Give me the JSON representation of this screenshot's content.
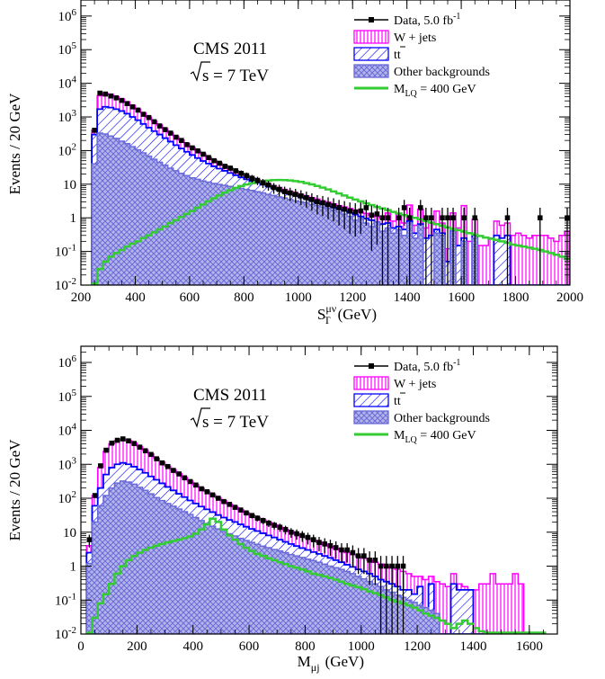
{
  "colors": {
    "data": "#000000",
    "wjets": "#ff00ff",
    "ttbar": "#0000ff",
    "other": "#6b6bd8",
    "signal": "#33cc33"
  },
  "chart_data": [
    {
      "type": "histogram-stack",
      "y_scale": "log",
      "ylim": [
        0.01,
        3000000
      ],
      "xlim": [
        200,
        2000
      ],
      "bin_width": 20,
      "x_ticks": [
        200,
        400,
        600,
        800,
        1000,
        1200,
        1400,
        1600,
        1800,
        2000
      ],
      "x_tick_labels": [
        "200",
        "400",
        "600",
        "800",
        "1000",
        "1200",
        "1400",
        "1600",
        "1800",
        "2000"
      ],
      "y_tick_labels": [
        "10-2",
        "10-1",
        "1",
        "10",
        "102",
        "103",
        "104",
        "105",
        "106"
      ],
      "xlabel_main": "S",
      "xlabel_sub": "T",
      "xlabel_sup": "μν",
      "xlabel_unit": "(GeV)",
      "ylabel": "Events / 20 GeV",
      "annotation_line1": "CMS 2011",
      "annotation_line2": "s = 7 TeV",
      "legend": {
        "data": "Data, 5.0 fb",
        "data_sup": "-1",
        "wjets": "W + jets",
        "ttbar": "tt",
        "other": "Other backgrounds",
        "signal_main": "M",
        "signal_sub": "LQ",
        "signal_rest": " = 400 GeV"
      },
      "bin_start": 240,
      "other": [
        40,
        330,
        310,
        270,
        230,
        190,
        160,
        130,
        105,
        85,
        68,
        55,
        45,
        37,
        30,
        25,
        21,
        18,
        15.5,
        14,
        12.5,
        11.5,
        10.5,
        9.8,
        9.2,
        8.6,
        8,
        7.5,
        7,
        6.5,
        6,
        5.5,
        5,
        4.6,
        4.2,
        3.9,
        3.5,
        3.2,
        3,
        2.8,
        2.5,
        2.3,
        2.1,
        1.9,
        1.7,
        1.5,
        1.3,
        1.1,
        0.85,
        0.95,
        0.7,
        0.55,
        0.75,
        0.4,
        0.5,
        0.35,
        0.45,
        0.3,
        0.7,
        0.25,
        0.6,
        0.01,
        0.01,
        0.35,
        0.3,
        0.01,
        0.4,
        0.01,
        0.2,
        0.01,
        0.25,
        0.01,
        0.01,
        0.01,
        0.01,
        0.01,
        0.01,
        0.01,
        0.01,
        0.01,
        0.01,
        0.01,
        0.01,
        0.01,
        0.01,
        0.01,
        0.01,
        0.01
      ],
      "ttbar": [
        300,
        1700,
        2000,
        1900,
        1700,
        1500,
        1250,
        1000,
        800,
        620,
        480,
        380,
        300,
        235,
        185,
        145,
        115,
        92,
        74,
        60,
        49,
        41,
        34,
        29,
        25,
        21.5,
        18.5,
        16,
        14,
        12.5,
        11,
        9.7,
        8.5,
        7.5,
        6.6,
        5.8,
        5.1,
        4.5,
        4,
        3.6,
        3.2,
        2.8,
        2.5,
        2.2,
        2,
        1.8,
        1.6,
        1.4,
        1.25,
        1.1,
        0.95,
        0.85,
        0.75,
        0.65,
        0.7,
        0.5,
        0.55,
        0.45,
        0.8,
        0.35,
        0.65,
        0.25,
        0.3,
        0.45,
        0.35,
        0.05,
        0.4,
        0.15,
        0.25,
        0.01,
        0.3,
        0.01,
        0.01,
        0.01,
        0.3,
        0.25,
        0.3,
        0.01,
        0.01,
        0.01,
        0.01,
        0.01,
        0.01,
        0.01,
        0.01,
        0.01,
        0.01,
        0.01
      ],
      "total": [
        400,
        4300,
        5000,
        4600,
        4000,
        3400,
        2800,
        2200,
        1700,
        1300,
        980,
        740,
        570,
        440,
        340,
        265,
        205,
        160,
        125,
        100,
        80,
        64,
        52,
        43,
        36,
        30,
        25,
        21,
        18,
        15.5,
        13.5,
        11.7,
        10.2,
        9,
        8,
        7,
        6.2,
        5.5,
        4.9,
        4.4,
        4,
        3.6,
        3.2,
        2.9,
        2.6,
        2.3,
        2.1,
        1.9,
        1.7,
        1.5,
        1.35,
        1.2,
        1.1,
        1.0,
        1.4,
        0.8,
        1.3,
        0.7,
        2.4,
        0.6,
        1.8,
        0.5,
        0.7,
        1.6,
        0.7,
        0.12,
        1.4,
        0.5,
        2.3,
        0.2,
        0.9,
        0.15,
        0.15,
        0.25,
        0.8,
        0.6,
        0.7,
        0.3,
        0.35,
        0.3,
        0.25,
        0.3,
        0.3,
        0.3,
        0.25,
        0.2,
        0.3,
        0.4
      ],
      "signal": [
        0.011,
        0.03,
        0.05,
        0.07,
        0.09,
        0.11,
        0.14,
        0.17,
        0.2,
        0.25,
        0.3,
        0.37,
        0.45,
        0.55,
        0.7,
        0.85,
        1.05,
        1.3,
        1.6,
        2,
        2.5,
        3.1,
        3.8,
        4.6,
        5.6,
        6.6,
        7.7,
        8.8,
        9.8,
        10.8,
        11.7,
        12.3,
        12.8,
        13.2,
        13.3,
        13.2,
        12.9,
        12.4,
        11.7,
        10.8,
        9.9,
        8.9,
        7.9,
        7,
        6.1,
        5.3,
        4.6,
        4,
        3.5,
        3.1,
        2.7,
        2.4,
        2.1,
        1.9,
        1.7,
        1.5,
        1.35,
        1.2,
        1.1,
        1.0,
        0.9,
        0.8,
        0.72,
        0.65,
        0.58,
        0.52,
        0.47,
        0.43,
        0.39,
        0.35,
        0.32,
        0.29,
        0.26,
        0.24,
        0.22,
        0.2,
        0.18,
        0.16,
        0.15,
        0.14,
        0.13,
        0.12,
        0.11,
        0.1,
        0.09,
        0.08,
        0.07,
        0.06
      ],
      "data_x": [
        250,
        270,
        290,
        310,
        330,
        350,
        370,
        390,
        410,
        430,
        450,
        470,
        490,
        510,
        530,
        550,
        570,
        590,
        610,
        630,
        650,
        670,
        690,
        710,
        730,
        750,
        770,
        790,
        810,
        830,
        850,
        870,
        890,
        910,
        930,
        950,
        970,
        990,
        1010,
        1030,
        1050,
        1070,
        1090,
        1110,
        1130,
        1150,
        1170,
        1190,
        1210,
        1230,
        1250,
        1270,
        1290,
        1310,
        1330,
        1370,
        1390,
        1410,
        1450,
        1470,
        1490,
        1530,
        1550,
        1570,
        1610,
        1650,
        1770,
        1890,
        1990
      ],
      "data_y": [
        400,
        5100,
        4800,
        4200,
        3700,
        3100,
        2500,
        2000,
        1600,
        1200,
        960,
        720,
        540,
        420,
        330,
        250,
        200,
        150,
        120,
        98,
        78,
        62,
        50,
        42,
        34,
        30,
        25,
        21,
        18,
        15,
        13,
        11,
        9.5,
        8,
        7,
        6,
        5.5,
        5,
        4.5,
        4,
        3.5,
        3,
        2.8,
        2.5,
        2.3,
        2,
        1.8,
        1.6,
        1.5,
        1.6,
        2.0,
        1.2,
        1.3,
        1.0,
        1.0,
        1.0,
        2.0,
        1.0,
        2.0,
        1.0,
        1.0,
        1.0,
        1.0,
        1.0,
        1.0,
        1.0,
        1.0,
        1.0,
        1.0
      ]
    },
    {
      "type": "histogram-stack",
      "y_scale": "log",
      "ylim": [
        0.01,
        3000000
      ],
      "xlim": [
        0,
        1700
      ],
      "bin_width": 20,
      "x_ticks": [
        0,
        200,
        400,
        600,
        800,
        1000,
        1200,
        1400,
        1600
      ],
      "x_tick_labels": [
        "0",
        "200",
        "400",
        "600",
        "800",
        "1000",
        "1200",
        "1400",
        "1600"
      ],
      "y_tick_labels": [
        "10-2",
        "10-1",
        "1",
        "10",
        "102",
        "103",
        "104",
        "105",
        "106"
      ],
      "xlabel_main": "M",
      "xlabel_sub": "μj",
      "xlabel_unit": "(GeV)",
      "ylabel": "Events / 20 GeV",
      "annotation_line1": "CMS 2011",
      "annotation_line2": "s = 7 TeV",
      "legend": {
        "data": "Data, 5.0 fb",
        "data_sup": "-1",
        "wjets": "W + jets",
        "ttbar": "tt",
        "other": "Other backgrounds",
        "signal_main": "M",
        "signal_sub": "LQ",
        "signal_rest": " = 400 GeV"
      },
      "bin_start": 20,
      "other": [
        1.2,
        20,
        60,
        120,
        200,
        280,
        320,
        300,
        260,
        210,
        170,
        135,
        105,
        85,
        70,
        58,
        48,
        40,
        33,
        27,
        22,
        18,
        15,
        12.5,
        10.5,
        9,
        7.7,
        6.6,
        5.7,
        5,
        4.4,
        3.9,
        3.5,
        3.1,
        2.8,
        2.5,
        2.2,
        2,
        1.8,
        1.6,
        1.45,
        1.3,
        1.15,
        1,
        0.9,
        0.8,
        0.7,
        0.6,
        0.5,
        0.42,
        0.35,
        0.3,
        0.25,
        0.2,
        0.17,
        0.14,
        0.12,
        0.1,
        0.085,
        0.07,
        0.06,
        0.05,
        0.04,
        0.01,
        0.01,
        0.01,
        0.01,
        0.01,
        0.01,
        0.01,
        0.01,
        0.01,
        0.01,
        0.01,
        0.01,
        0.01,
        0.01,
        0.01,
        0.01,
        0.01,
        0.01,
        0.01
      ],
      "ttbar": [
        2.5,
        60,
        200,
        500,
        800,
        1000,
        1100,
        1000,
        850,
        700,
        560,
        440,
        350,
        275,
        215,
        170,
        135,
        108,
        86,
        70,
        57,
        47,
        39,
        32,
        27,
        23,
        20,
        17,
        14.5,
        12.5,
        10.8,
        9.3,
        8,
        7,
        6,
        5.2,
        4.5,
        3.9,
        3.4,
        3,
        2.6,
        2.3,
        2,
        1.75,
        1.5,
        1.3,
        1.1,
        0.95,
        0.8,
        0.7,
        0.6,
        0.5,
        0.4,
        0.35,
        0.3,
        0.25,
        0.2,
        0.2,
        0.15,
        0.25,
        0.01,
        0.3,
        0.01,
        0.01,
        0.01,
        0.3,
        0.2,
        0.2,
        0.2,
        0.01,
        0.01,
        0.01,
        0.01,
        0.01,
        0.01,
        0.01,
        0.01,
        0.01,
        0.01,
        0.01,
        0.01,
        0.01
      ],
      "total": [
        4,
        120,
        800,
        2400,
        4000,
        5000,
        5500,
        5000,
        4200,
        3300,
        2600,
        2000,
        1500,
        1150,
        880,
        680,
        530,
        410,
        320,
        250,
        200,
        160,
        128,
        103,
        84,
        68,
        56,
        46,
        38,
        32,
        27,
        23,
        19.5,
        16.5,
        14,
        12,
        10.3,
        8.9,
        7.7,
        6.7,
        5.8,
        5,
        4.4,
        3.8,
        3.3,
        2.9,
        2.5,
        2.2,
        1.9,
        1.7,
        1.5,
        1.3,
        1.15,
        1.0,
        0.9,
        0.8,
        0.7,
        0.6,
        0.5,
        0.5,
        0.4,
        0.5,
        0.35,
        0.3,
        0.25,
        0.6,
        0.3,
        0.25,
        0.2,
        0.2,
        0.3,
        0.3,
        0.6,
        0.3,
        0.3,
        0.3,
        0.6,
        0.3,
        0.01,
        0.01,
        0.01,
        0.01
      ],
      "signal": [
        0.011,
        0.03,
        0.08,
        0.15,
        0.3,
        0.6,
        1.0,
        1.5,
        2.0,
        2.5,
        3.0,
        3.5,
        4.0,
        4.5,
        5.0,
        5.5,
        6.0,
        6.7,
        7.5,
        9.0,
        12,
        17,
        25,
        20,
        12,
        8.0,
        6.0,
        4.5,
        3.5,
        2.8,
        2.3,
        2.0,
        1.7,
        1.5,
        1.3,
        1.15,
        1.0,
        0.9,
        0.8,
        0.7,
        0.6,
        0.55,
        0.5,
        0.45,
        0.4,
        0.35,
        0.3,
        0.27,
        0.24,
        0.21,
        0.18,
        0.16,
        0.14,
        0.12,
        0.1,
        0.09,
        0.08,
        0.07,
        0.06,
        0.05,
        0.04,
        0.035,
        0.03,
        0.025,
        0.02,
        0.015,
        0.02,
        0.025,
        0.02,
        0.015,
        0.012,
        0.011,
        0.011,
        0.011,
        0.011,
        0.011,
        0.011,
        0.011,
        0.011,
        0.011,
        0.011,
        0.011
      ],
      "data_x": [
        30,
        50,
        70,
        90,
        110,
        130,
        150,
        170,
        190,
        210,
        230,
        250,
        270,
        290,
        310,
        330,
        350,
        370,
        390,
        410,
        430,
        450,
        470,
        490,
        510,
        530,
        550,
        570,
        590,
        610,
        630,
        650,
        670,
        690,
        710,
        730,
        750,
        770,
        790,
        810,
        830,
        850,
        870,
        890,
        910,
        930,
        950,
        970,
        990,
        1010,
        1030,
        1050,
        1070,
        1090,
        1110,
        1130,
        1150
      ],
      "data_y": [
        6,
        120,
        900,
        2600,
        4200,
        5100,
        5600,
        4900,
        4100,
        3200,
        2500,
        1950,
        1450,
        1100,
        860,
        660,
        520,
        400,
        310,
        245,
        190,
        155,
        125,
        100,
        80,
        66,
        54,
        45,
        37,
        31,
        26,
        22,
        18.5,
        16,
        14,
        12,
        10,
        9,
        8,
        7,
        6,
        5,
        4.5,
        4,
        3.5,
        3,
        3,
        2.5,
        2,
        2,
        1.5,
        1.5,
        1,
        1,
        1,
        1,
        1
      ]
    }
  ]
}
